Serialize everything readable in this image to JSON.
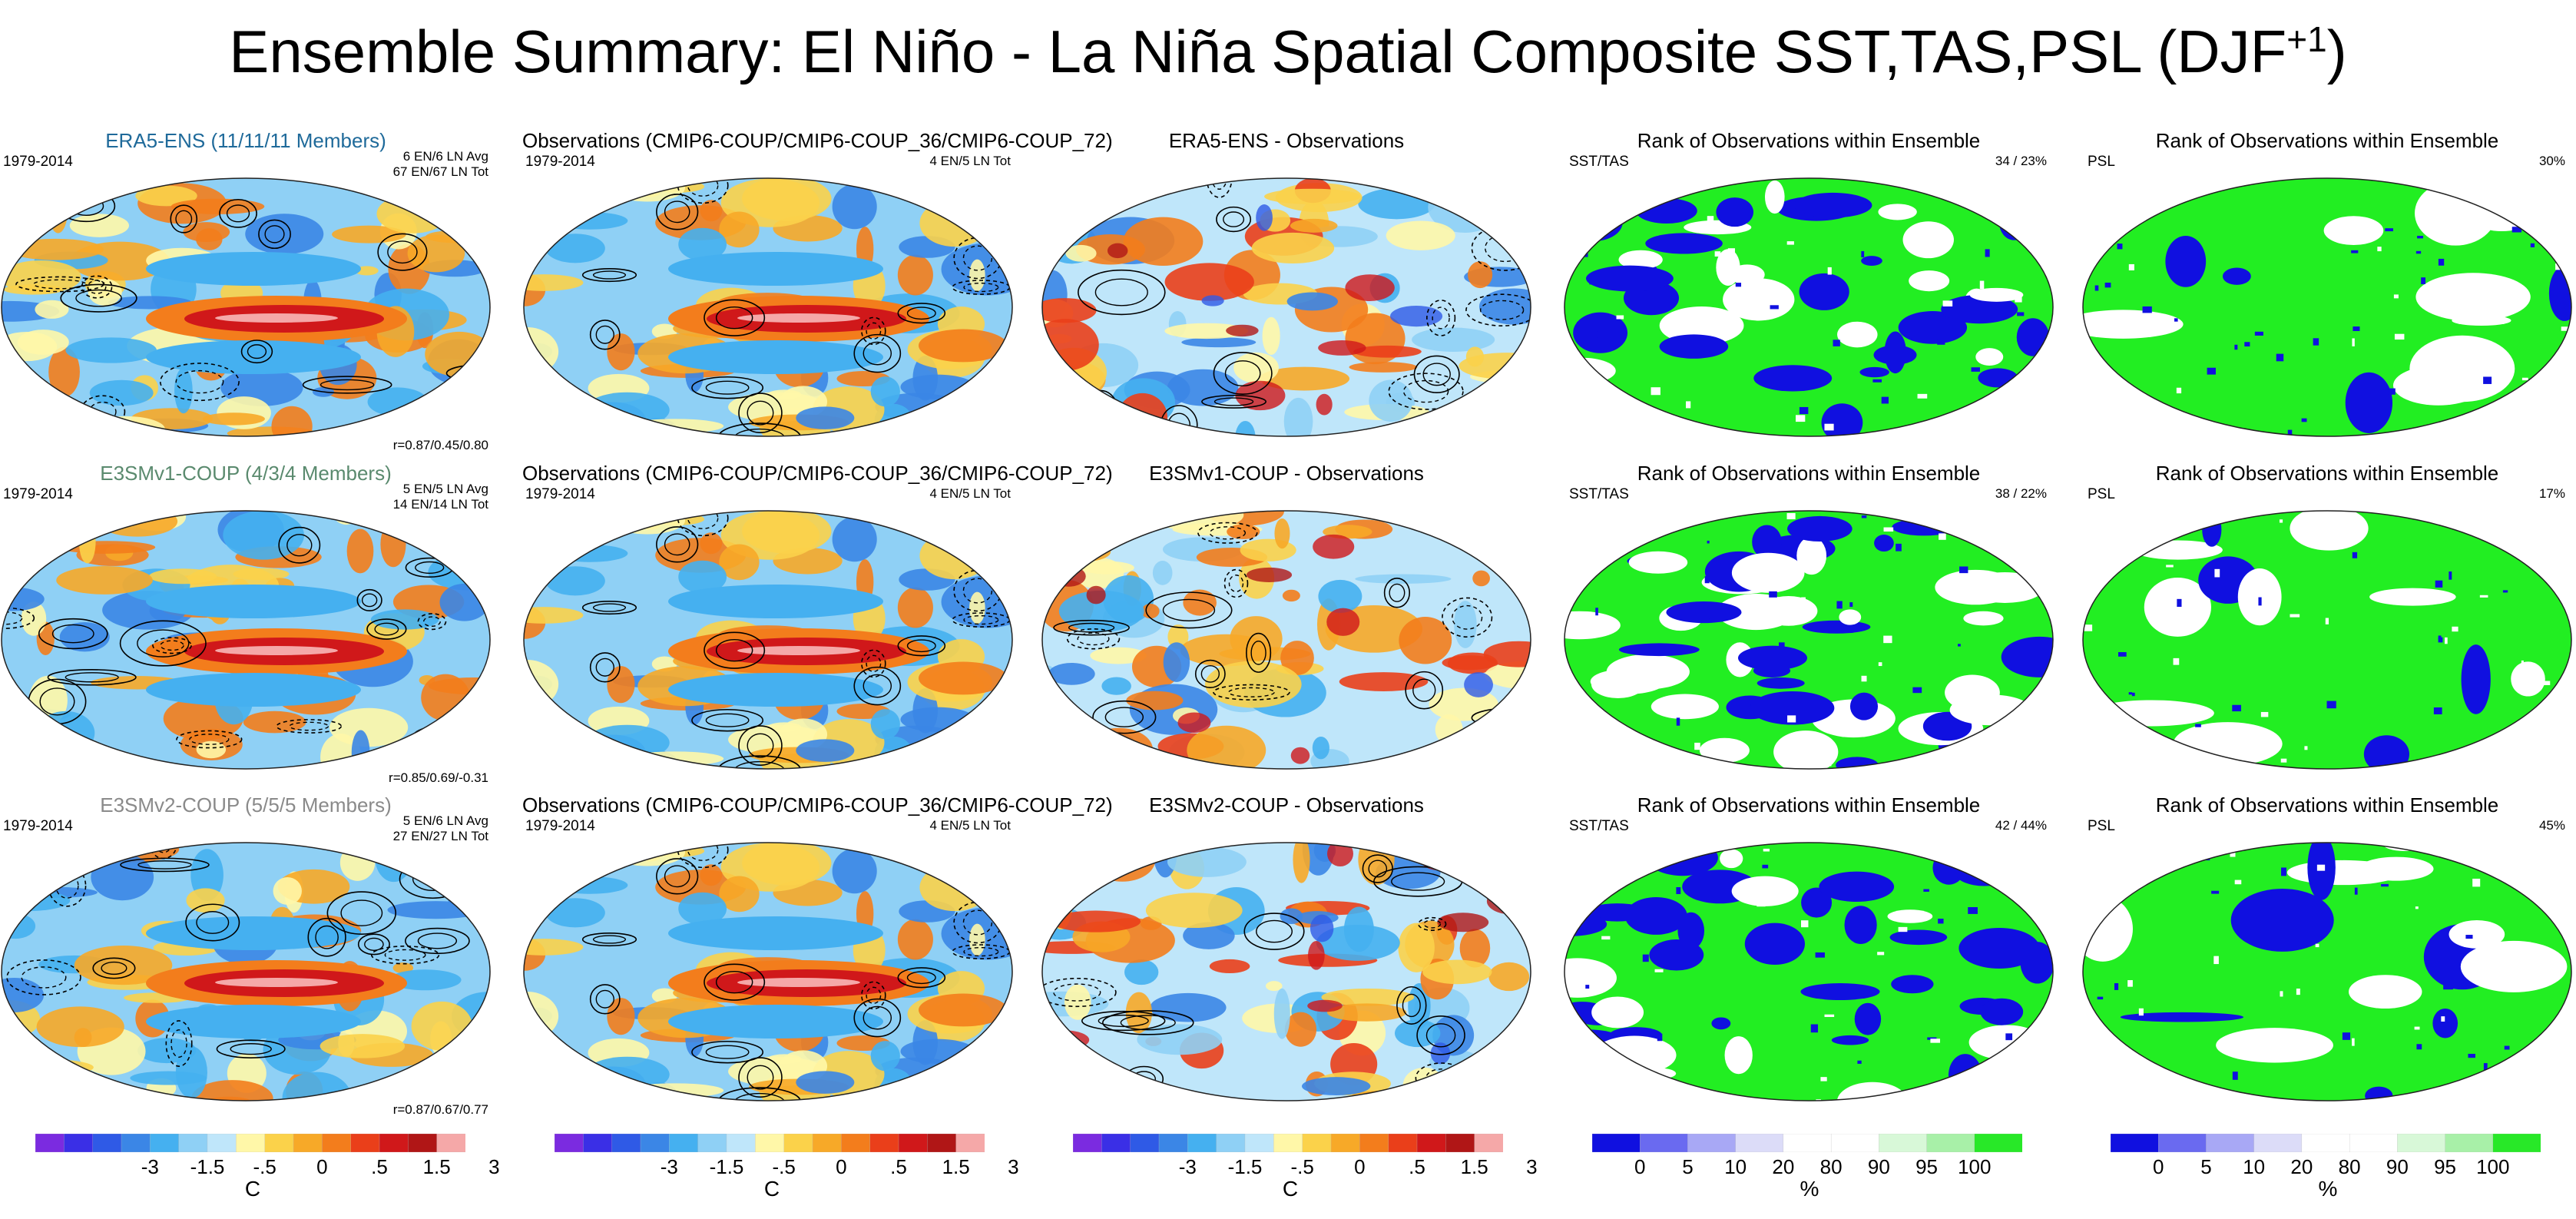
{
  "title": "Ensemble Summary: El Niño - La Niña Spatial Composite SST,TAS,PSL (DJF",
  "title_sup": "+1",
  "title_close": ")",
  "rows": [
    {
      "model": "ERA5-ENS (11/11/11 Members)",
      "model_color": "#1f6a9a",
      "period": "1979-2014",
      "ens_line1": "6 EN/6 LN Avg",
      "ens_line2": "67 EN/67 LN Tot",
      "corr": "r=0.87/0.45/0.80",
      "obs_title": "Observations (CMIP6-COUP/CMIP6-COUP_36/CMIP6-COUP_72)",
      "obs_period": "1979-2014",
      "obs_count": "4 EN/5 LN Tot",
      "diff_title": "ERA5-ENS - Observations",
      "rank_title": "Rank of Observations within Ensemble",
      "rank_sst_label": "SST/TAS",
      "rank_sst_value": "34 /  23%",
      "rank_psl_title": "Rank of Observations within Ensemble",
      "rank_psl_label": "PSL",
      "rank_psl_value": "30%"
    },
    {
      "model": "E3SMv1-COUP (4/3/4 Members)",
      "model_color": "#5a8a6e",
      "period": "1979-2014",
      "ens_line1": "5 EN/5 LN Avg",
      "ens_line2": "14 EN/14 LN Tot",
      "corr": "r=0.85/0.69/-0.31",
      "obs_title": "Observations (CMIP6-COUP/CMIP6-COUP_36/CMIP6-COUP_72)",
      "obs_period": "1979-2014",
      "obs_count": "4 EN/5 LN Tot",
      "diff_title": "E3SMv1-COUP - Observations",
      "rank_title": "Rank of Observations within Ensemble",
      "rank_sst_label": "SST/TAS",
      "rank_sst_value": "38 /  22%",
      "rank_psl_title": "Rank of Observations within Ensemble",
      "rank_psl_label": "PSL",
      "rank_psl_value": "17%"
    },
    {
      "model": "E3SMv2-COUP (5/5/5 Members)",
      "model_color": "#8a8a8a",
      "period": "1979-2014",
      "ens_line1": "5 EN/6 LN Avg",
      "ens_line2": "27 EN/27 LN Tot",
      "corr": "r=0.87/0.67/0.77",
      "obs_title": "Observations (CMIP6-COUP/CMIP6-COUP_36/CMIP6-COUP_72)",
      "obs_period": "1979-2014",
      "obs_count": "4 EN/5 LN Tot",
      "diff_title": "E3SMv2-COUP - Observations",
      "rank_title": "Rank of Observations within Ensemble",
      "rank_sst_label": "SST/TAS",
      "rank_sst_value": "42 /  44%",
      "rank_psl_title": "Rank of Observations within Ensemble",
      "rank_psl_label": "PSL",
      "rank_psl_value": "45%"
    }
  ],
  "colorbars": {
    "temp": {
      "colors": [
        "#7b2be0",
        "#3a2fe6",
        "#2f5ae6",
        "#3b86e6",
        "#45b0f0",
        "#8fd0f5",
        "#bfe6fa",
        "#fff7a8",
        "#fbd24a",
        "#f7a928",
        "#f37d1c",
        "#ea3f1a",
        "#d0181a",
        "#b01616",
        "#f5a8a8"
      ],
      "ticks": [
        "-3",
        "-1.5",
        "-.5",
        "0",
        ".5",
        "1.5",
        "3"
      ],
      "unit": "C"
    },
    "rank": {
      "colors": [
        "#1010e0",
        "#6a6af0",
        "#a8a8f5",
        "#dcdcf8",
        "#ffffff",
        "#ffffff",
        "#d8f8d8",
        "#a8f0a8",
        "#28e828"
      ],
      "ticks": [
        "0",
        "5",
        "10",
        "20",
        "80",
        "90",
        "95",
        "100"
      ],
      "unit": "%"
    }
  },
  "palette": {
    "map_blue": "#45b0f0",
    "map_red": "#d0181a",
    "rank_green": "#22ee22",
    "rank_blue": "#1010e0"
  }
}
